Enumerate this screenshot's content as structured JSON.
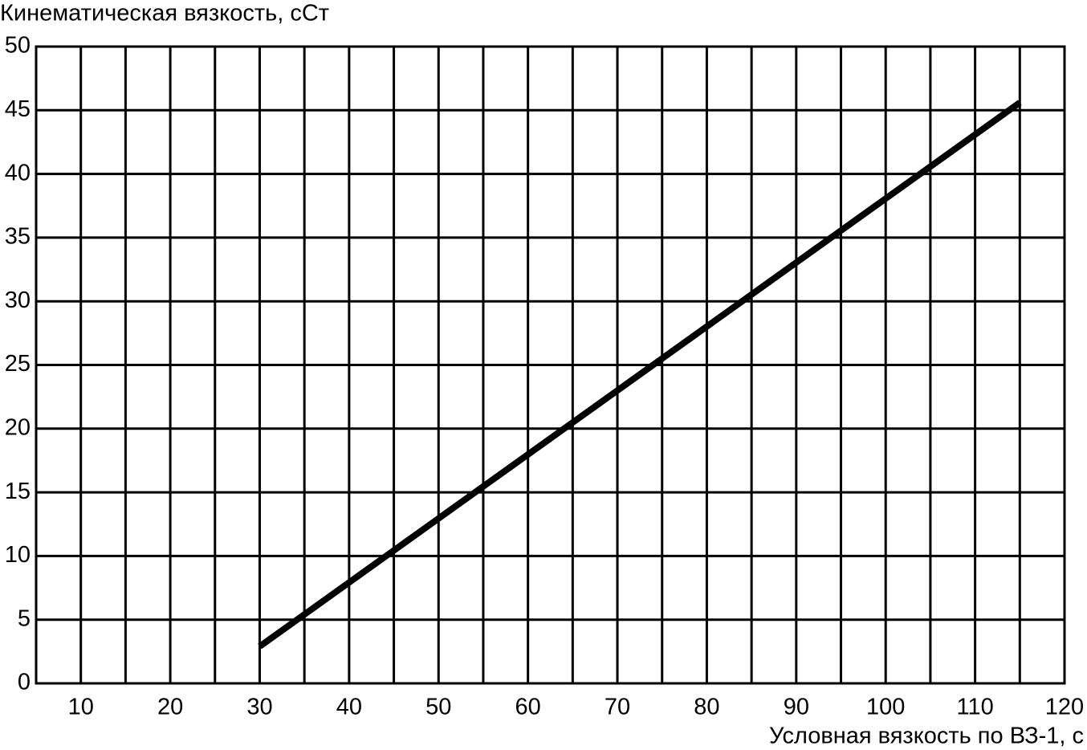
{
  "chart_data": {
    "type": "line",
    "y_label": "Кинематическая вязкость, сСт",
    "x_label": "Условная вязкость по ВЗ-1, с",
    "x": [
      30,
      115
    ],
    "series": [
      {
        "color": "#000000",
        "values": [
          2.9,
          45.6
        ]
      }
    ],
    "xlim": [
      5,
      120
    ],
    "xticks": [
      10,
      20,
      30,
      40,
      50,
      60,
      70,
      80,
      90,
      100,
      110,
      120
    ],
    "x_minor_grid": [
      15,
      25,
      35,
      45,
      55,
      65,
      75,
      85,
      95,
      105,
      115
    ],
    "ylim": [
      0,
      50
    ],
    "yticks": [
      0,
      5,
      10,
      15,
      20,
      25,
      30,
      35,
      40,
      45,
      50
    ],
    "grid": true
  }
}
